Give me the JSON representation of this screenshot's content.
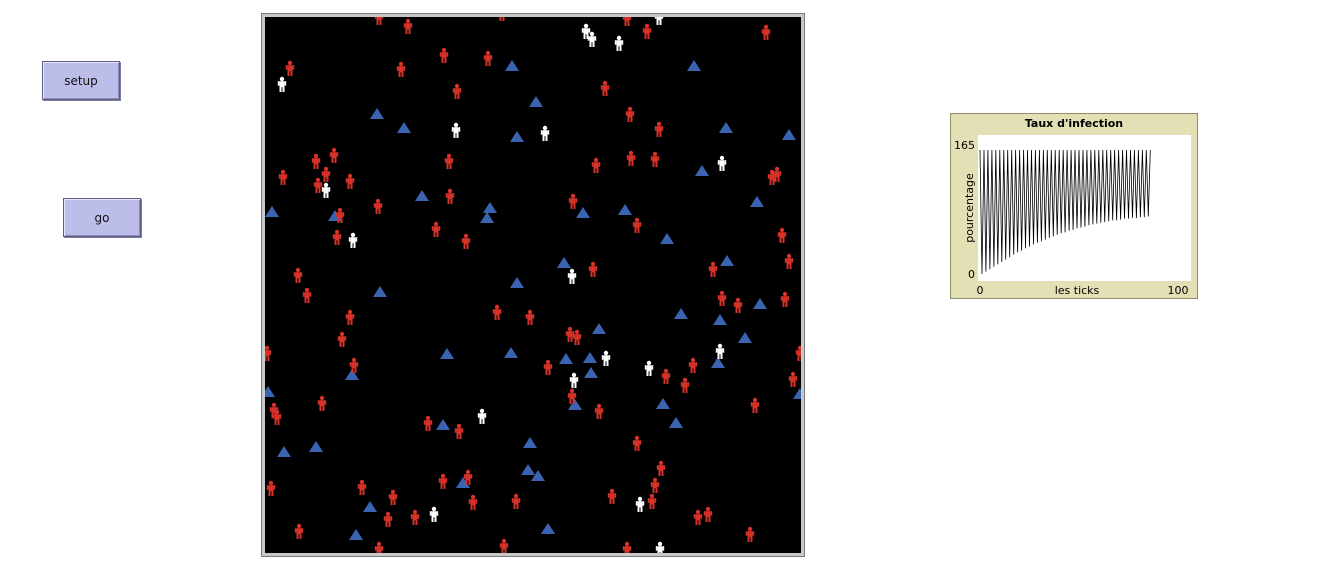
{
  "buttons": {
    "setup_label": "setup",
    "go_label": "go"
  },
  "world": {
    "background": "#000000",
    "colors": {
      "infected": "#d73229",
      "healthy": "#ffffff",
      "obstacle": "#3a64b2"
    },
    "icons": {
      "person": "person-icon",
      "obstacle": "triangle-icon"
    }
  },
  "plot": {
    "title": "Taux d'infection",
    "ylabel": "pourcentage",
    "xlabel": "les ticks",
    "background": "#e3e0b6"
  },
  "chart_data": {
    "type": "line",
    "title": "Taux d'infection",
    "xlabel": "les ticks",
    "ylabel": "pourcentage",
    "xlim": [
      0,
      100
    ],
    "ylim": [
      0,
      165
    ],
    "x_tick_labels": [
      "0",
      "100"
    ],
    "y_tick_labels": [
      "0",
      "165"
    ],
    "series": [
      {
        "x": [
          0,
          1,
          2,
          3,
          4,
          5,
          6,
          7,
          8,
          9,
          10,
          11,
          12,
          13,
          14,
          15,
          16,
          17,
          18,
          19,
          20,
          21,
          22,
          23,
          24,
          25,
          26,
          27,
          28,
          29,
          30,
          31,
          32,
          33,
          34,
          35,
          36,
          37,
          38,
          39,
          40,
          41,
          42,
          43,
          44,
          45,
          46,
          47,
          48,
          49,
          50,
          51,
          52,
          53,
          54,
          55,
          56,
          57,
          58,
          59,
          60,
          61,
          62,
          63,
          64,
          65,
          66,
          67,
          68,
          69,
          70,
          71,
          72,
          73,
          74,
          75,
          76,
          77,
          78,
          79,
          80,
          81,
          82,
          83,
          84,
          85,
          86
        ],
        "y": [
          160,
          5,
          160,
          8,
          160,
          11,
          160,
          14,
          160,
          17,
          160,
          20,
          160,
          23,
          160,
          26,
          160,
          29,
          160,
          32,
          160,
          34,
          160,
          37,
          160,
          39,
          160,
          42,
          160,
          44,
          160,
          46,
          160,
          48,
          160,
          50,
          160,
          52,
          160,
          54,
          160,
          56,
          160,
          57,
          160,
          59,
          160,
          60,
          160,
          62,
          160,
          63,
          160,
          64,
          160,
          66,
          160,
          67,
          160,
          68,
          160,
          69,
          160,
          70,
          160,
          71,
          160,
          72,
          160,
          72,
          160,
          73,
          160,
          74,
          160,
          74,
          160,
          75,
          160,
          75,
          160,
          76,
          160,
          76,
          160,
          77,
          160
        ]
      }
    ]
  }
}
